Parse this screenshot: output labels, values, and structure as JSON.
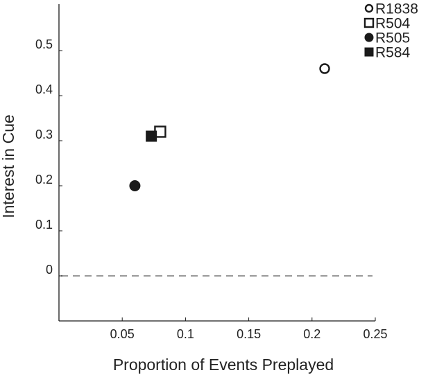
{
  "chart_data": {
    "type": "scatter",
    "title": "",
    "xlabel": "Proportion of Events Preplayed",
    "ylabel": "Interest in Cue",
    "xlim": [
      0,
      0.25
    ],
    "ylim": [
      -0.1,
      0.6
    ],
    "x_ticks": [
      0.05,
      0.1,
      0.15,
      0.2,
      0.25
    ],
    "x_tick_labels": [
      "0.05",
      "0.1",
      "0.15",
      "0.2",
      "0.25"
    ],
    "y_ticks": [
      0,
      0.1,
      0.2,
      0.3,
      0.4,
      0.5
    ],
    "y_tick_labels": [
      "0",
      "0.1",
      "0.2",
      "0.3",
      "0.4",
      "0.5"
    ],
    "reference_line": {
      "y": 0,
      "style": "dashed",
      "color": "#999999"
    },
    "grid": false,
    "legend_position": "top-right",
    "series": [
      {
        "name": "R1838",
        "marker": "circle-open",
        "color": "#1a1a1a",
        "points": [
          {
            "x": 0.21,
            "y": 0.46
          }
        ]
      },
      {
        "name": "R504",
        "marker": "square-open",
        "color": "#1a1a1a",
        "points": [
          {
            "x": 0.08,
            "y": 0.32
          }
        ]
      },
      {
        "name": "R505",
        "marker": "circle-filled",
        "color": "#1a1a1a",
        "points": [
          {
            "x": 0.06,
            "y": 0.2
          }
        ]
      },
      {
        "name": "R584",
        "marker": "square-filled",
        "color": "#1a1a1a",
        "points": [
          {
            "x": 0.073,
            "y": 0.31
          }
        ]
      }
    ]
  }
}
